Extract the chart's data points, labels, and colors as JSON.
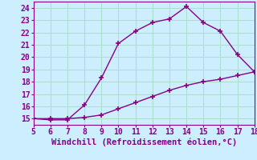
{
  "line1_x": [
    5,
    6,
    7,
    8,
    9,
    10,
    11,
    12,
    13,
    14,
    15,
    16,
    17,
    18
  ],
  "line1_y": [
    15.0,
    14.9,
    14.9,
    16.1,
    18.3,
    21.1,
    22.1,
    22.8,
    23.1,
    24.1,
    22.8,
    22.1,
    20.2,
    18.8
  ],
  "line2_x": [
    5,
    6,
    7,
    8,
    9,
    10,
    11,
    12,
    13,
    14,
    15,
    16,
    17,
    18
  ],
  "line2_y": [
    15.0,
    15.0,
    15.0,
    15.1,
    15.3,
    15.8,
    16.3,
    16.8,
    17.3,
    17.7,
    18.0,
    18.2,
    18.5,
    18.8
  ],
  "line_color": "#880088",
  "bg_color": "#cceeff",
  "grid_color": "#aaddcc",
  "xlabel": "Windchill (Refroidissement éolien,°C)",
  "xlim": [
    5,
    18
  ],
  "ylim": [
    14.5,
    24.5
  ],
  "xticks": [
    5,
    6,
    7,
    8,
    9,
    10,
    11,
    12,
    13,
    14,
    15,
    16,
    17,
    18
  ],
  "yticks": [
    15,
    16,
    17,
    18,
    19,
    20,
    21,
    22,
    23,
    24
  ],
  "marker": "+",
  "markersize": 5,
  "markeredgewidth": 1.2,
  "linewidth": 1.0,
  "xlabel_fontsize": 7.5,
  "tick_fontsize": 7
}
